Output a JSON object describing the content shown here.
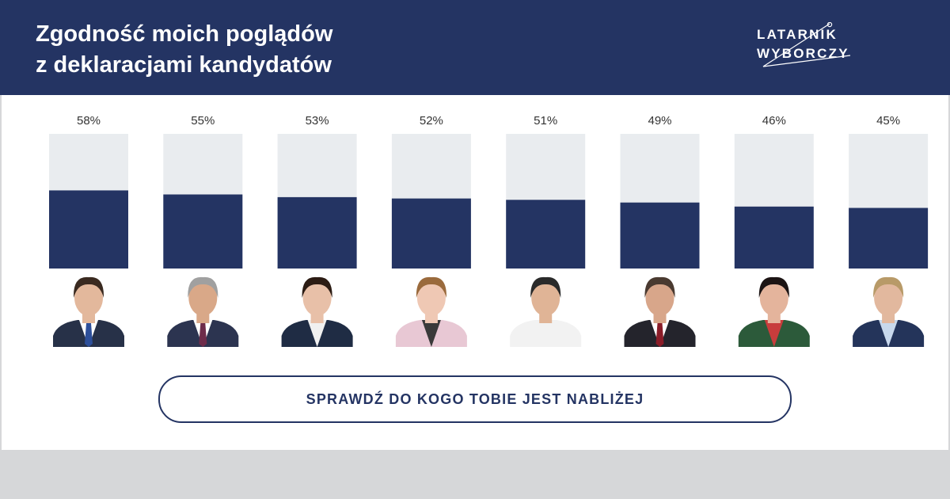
{
  "header": {
    "title_lines": [
      "Zgodność moich poglądów",
      "z deklaracjami kandydatów"
    ],
    "logo_lines": [
      "LATARNIK",
      "WYBORCZY"
    ]
  },
  "colors": {
    "navy": "#243463",
    "bar_track": "#e9ecef",
    "page_bg": "#d6d7d9"
  },
  "chart_data": {
    "type": "bar",
    "values": [
      58,
      55,
      53,
      52,
      51,
      49,
      46,
      45
    ],
    "labels": [
      "58%",
      "55%",
      "53%",
      "52%",
      "51%",
      "49%",
      "46%",
      "45%"
    ],
    "ylim": [
      0,
      100
    ],
    "candidates": [
      {
        "skin": "#e3b89c",
        "hair": "#3a2a20",
        "suit": "#273148",
        "shirt": "#ffffff",
        "tie": "#2d4f9a"
      },
      {
        "skin": "#d9a888",
        "hair": "#a0a0a0",
        "suit": "#2c3450",
        "shirt": "#ffffff",
        "tie": "#6e2c4a"
      },
      {
        "skin": "#e8c0a8",
        "hair": "#2c1c14",
        "suit": "#1f2c44",
        "shirt": "#f0f0f0",
        "tie": ""
      },
      {
        "skin": "#efc8b4",
        "hair": "#9a6a3c",
        "suit": "#e8c8d4",
        "shirt": "#3a3a3a",
        "tie": ""
      },
      {
        "skin": "#e0b496",
        "hair": "#2a2a2a",
        "suit": "#f2f2f2",
        "shirt": "#f2f2f2",
        "tie": ""
      },
      {
        "skin": "#d8a68a",
        "hair": "#4a3a30",
        "suit": "#24242c",
        "shirt": "#ffffff",
        "tie": "#8a1c28"
      },
      {
        "skin": "#e4b49c",
        "hair": "#1c1414",
        "suit": "#2c5a3a",
        "shirt": "#c83c3c",
        "tie": ""
      },
      {
        "skin": "#e2b89e",
        "hair": "#b89a68",
        "suit": "#24345a",
        "shirt": "#c8d8ec",
        "tie": ""
      }
    ]
  },
  "cta": {
    "label": "SPRAWDŹ DO KOGO TOBIE JEST NABLIŻEJ"
  }
}
